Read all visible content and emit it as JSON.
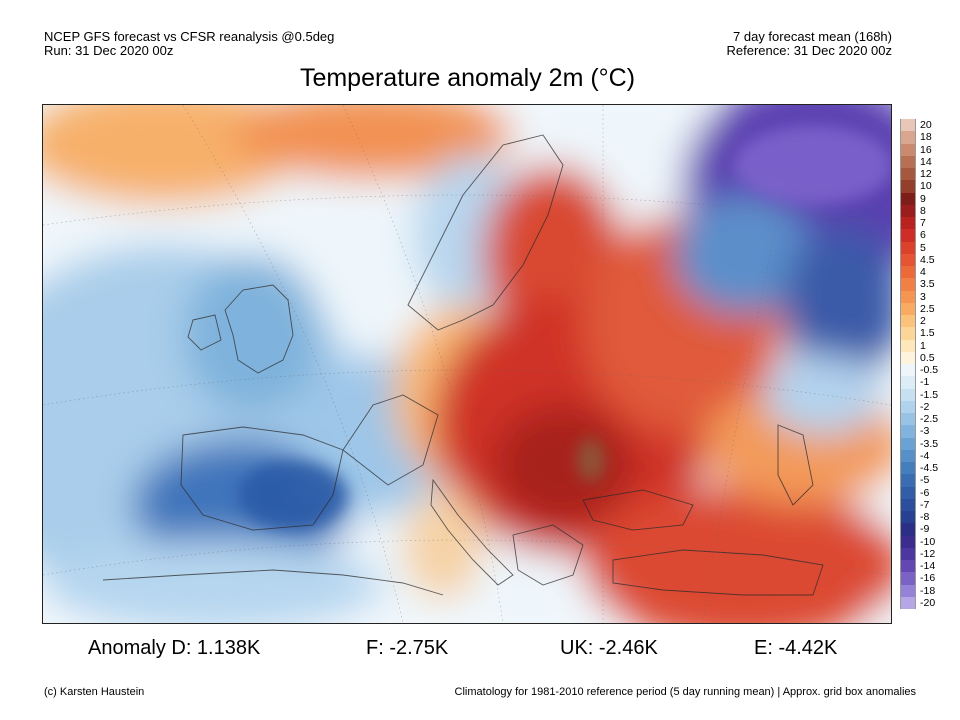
{
  "header": {
    "line1_left": "NCEP GFS forecast vs CFSR reanalysis @0.5deg",
    "line2_left": "Run: 31 Dec 2020 00z",
    "line1_right": "7 day forecast mean (168h)",
    "line2_right": "Reference: 31 Dec 2020 00z"
  },
  "title": "Temperature anomaly 2m (°C)",
  "map": {
    "description_label": "Europe 2m temperature anomaly map",
    "colors": {
      "deep_warm": "#a8241e",
      "warm": "#d9412e",
      "orange": "#ef7a3d",
      "light_orange": "#f7b26d",
      "pale": "#fbe0b8",
      "white": "#f4f7fa",
      "light_blue": "#b9d6ee",
      "blue": "#7fb2dc",
      "mid_blue": "#4f8bc6",
      "dark_blue": "#2c5aa6",
      "purple": "#5a3fb0",
      "light_purple": "#8a73d4",
      "brown": "#8c5a3a"
    }
  },
  "legend": {
    "labels": [
      "20",
      "18",
      "16",
      "14",
      "12",
      "10",
      "9",
      "8",
      "7",
      "6",
      "5",
      "4.5",
      "4",
      "3.5",
      "3",
      "2.5",
      "2",
      "1.5",
      "1",
      "0.5",
      "-0.5",
      "-1",
      "-1.5",
      "-2",
      "-2.5",
      "-3",
      "-3.5",
      "-4",
      "-4.5",
      "-5",
      "-6",
      "-7",
      "-8",
      "-9",
      "-10",
      "-12",
      "-14",
      "-16",
      "-18",
      "-20"
    ],
    "colors": [
      "#e8c7b8",
      "#d9a790",
      "#c98a70",
      "#b87055",
      "#a6583f",
      "#933f2c",
      "#7d1e1a",
      "#9a1e1e",
      "#b8231f",
      "#cf2e26",
      "#dc412c",
      "#e55533",
      "#ec6a3a",
      "#f18046",
      "#f59552",
      "#f8ab61",
      "#fac27a",
      "#fcd598",
      "#fde7bb",
      "#fef3dc",
      "#eef6fc",
      "#dcedf8",
      "#c6e0f2",
      "#b0d2ec",
      "#98c3e5",
      "#80b3dd",
      "#6aa2d4",
      "#5790c9",
      "#457ebd",
      "#3a6db2",
      "#325ea8",
      "#2b4f9d",
      "#274092",
      "#2c2f86",
      "#3c2c8d",
      "#4e36a0",
      "#6348b4",
      "#7b63c6",
      "#9682d6",
      "#b6a6e6"
    ]
  },
  "anomalies": {
    "d": "Anomaly D: 1.138K",
    "f": "F: -2.75K",
    "uk": "UK: -2.46K",
    "e": "E: -4.42K"
  },
  "footer": {
    "left": "(c) Karsten Haustein",
    "right": "Climatology for 1981-2010 reference period (5 day running mean) | Approx. grid box anomalies"
  }
}
